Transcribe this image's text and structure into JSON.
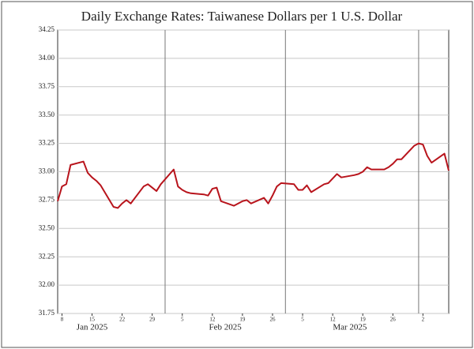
{
  "chart_data": {
    "type": "line",
    "title": "Daily Exchange Rates: Taiwanese Dollars per 1 U.S. Dollar",
    "x": [
      "2025-01-07",
      "2025-01-08",
      "2025-01-09",
      "2025-01-10",
      "2025-01-13",
      "2025-01-14",
      "2025-01-15",
      "2025-01-16",
      "2025-01-17",
      "2025-01-20",
      "2025-01-21",
      "2025-01-22",
      "2025-01-23",
      "2025-01-24",
      "2025-01-27",
      "2025-01-28",
      "2025-01-30",
      "2025-01-31",
      "2025-02-03",
      "2025-02-04",
      "2025-02-05",
      "2025-02-06",
      "2025-02-07",
      "2025-02-10",
      "2025-02-11",
      "2025-02-12",
      "2025-02-13",
      "2025-02-14",
      "2025-02-17",
      "2025-02-18",
      "2025-02-19",
      "2025-02-20",
      "2025-02-21",
      "2025-02-24",
      "2025-02-25",
      "2025-02-26",
      "2025-02-27",
      "2025-02-28",
      "2025-03-03",
      "2025-03-04",
      "2025-03-05",
      "2025-03-06",
      "2025-03-07",
      "2025-03-10",
      "2025-03-11",
      "2025-03-12",
      "2025-03-13",
      "2025-03-14",
      "2025-03-17",
      "2025-03-18",
      "2025-03-19",
      "2025-03-20",
      "2025-03-21",
      "2025-03-24",
      "2025-03-25",
      "2025-03-26",
      "2025-03-27",
      "2025-03-28",
      "2025-03-31",
      "2025-04-01",
      "2025-04-02",
      "2025-04-03",
      "2025-04-04",
      "2025-04-07",
      "2025-04-08"
    ],
    "series": [
      {
        "color": "#b8141c",
        "values": [
          32.74,
          32.87,
          32.89,
          33.06,
          33.09,
          32.99,
          32.95,
          32.92,
          32.88,
          32.69,
          32.68,
          32.72,
          32.75,
          32.72,
          32.87,
          32.89,
          32.83,
          32.89,
          33.02,
          32.87,
          32.84,
          32.82,
          32.81,
          32.8,
          32.79,
          32.85,
          32.86,
          32.74,
          32.7,
          32.72,
          32.74,
          32.75,
          32.72,
          32.77,
          32.72,
          32.79,
          32.87,
          32.9,
          32.89,
          32.84,
          32.84,
          32.88,
          32.82,
          32.89,
          32.9,
          32.94,
          32.98,
          32.95,
          32.97,
          32.98,
          33.0,
          33.04,
          33.02,
          33.02,
          33.04,
          33.07,
          33.11,
          33.11,
          33.23,
          33.25,
          33.24,
          33.14,
          33.08,
          33.16,
          33.01
        ]
      }
    ],
    "xlim": [
      "2025-01-07",
      "2025-04-08"
    ],
    "xticks": [
      {
        "value": "2025-01-08",
        "label": "8"
      },
      {
        "value": "2025-01-15",
        "label": "15"
      },
      {
        "value": "2025-01-22",
        "label": "22"
      },
      {
        "value": "2025-01-29",
        "label": "29"
      },
      {
        "value": "2025-02-05",
        "label": "5"
      },
      {
        "value": "2025-02-12",
        "label": "12"
      },
      {
        "value": "2025-02-19",
        "label": "19"
      },
      {
        "value": "2025-02-26",
        "label": "26"
      },
      {
        "value": "2025-03-05",
        "label": "5"
      },
      {
        "value": "2025-03-12",
        "label": "12"
      },
      {
        "value": "2025-03-19",
        "label": "19"
      },
      {
        "value": "2025-03-26",
        "label": "26"
      },
      {
        "value": "2025-04-02",
        "label": "2"
      }
    ],
    "x_group_labels": [
      {
        "value": "2025-01-15",
        "label": "Jan 2025"
      },
      {
        "value": "2025-02-15",
        "label": "Feb 2025"
      },
      {
        "value": "2025-03-16",
        "label": "Mar 2025"
      }
    ],
    "x_separators": [
      "2025-02-01",
      "2025-03-01",
      "2025-04-01"
    ],
    "ylim": [
      31.75,
      34.25
    ],
    "yticks": [
      31.75,
      {
        "value": 32,
        "label": "32.00"
      },
      32.25,
      {
        "value": 32.5,
        "label": "32.50"
      },
      32.75,
      {
        "value": 33,
        "label": "33.00"
      },
      33.25,
      {
        "value": 33.5,
        "label": "33.50"
      },
      33.75,
      {
        "value": 34,
        "label": "34.00"
      },
      34.25
    ],
    "grid": true
  }
}
